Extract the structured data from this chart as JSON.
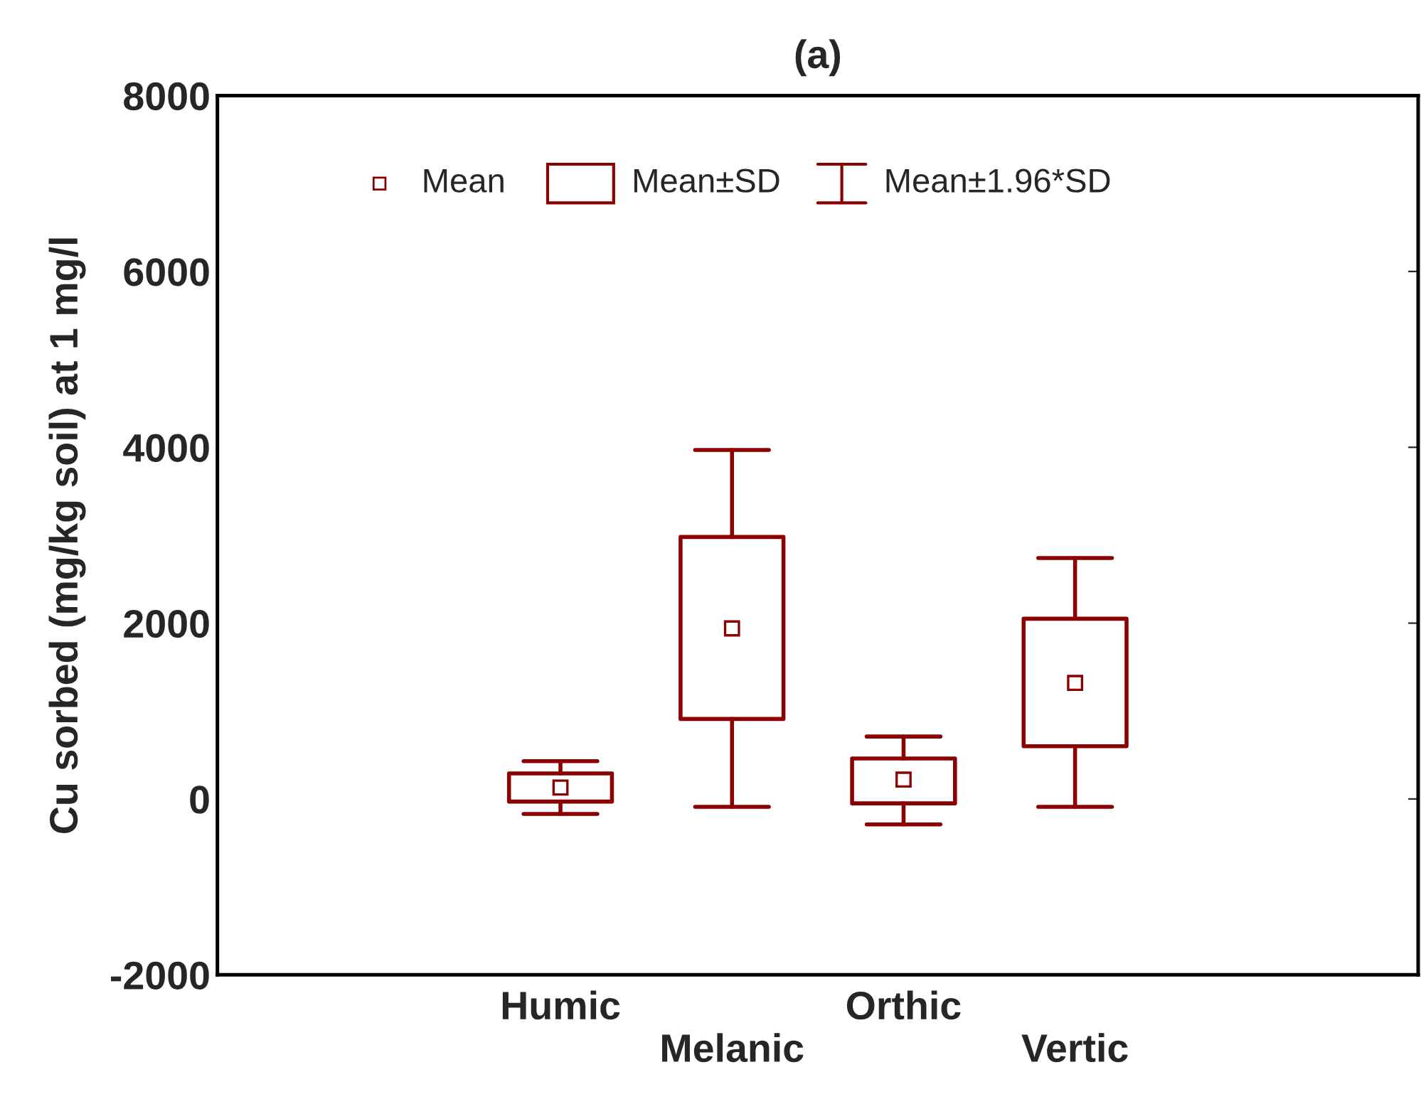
{
  "chart_data": {
    "type": "box",
    "title": "(a)",
    "ylabel": "Cu sorbed (mg/kg soil) at 1 mg/l",
    "categories": [
      "Humic",
      "Melanic",
      "Orthic",
      "Vertic"
    ],
    "color": "#8b0000",
    "boxes": [
      {
        "low": -170,
        "q1": -30,
        "median": 130,
        "q3": 290,
        "high": 430
      },
      {
        "low": -90,
        "q1": 910,
        "median": 1940,
        "q3": 2980,
        "high": 3970
      },
      {
        "low": -290,
        "q1": -50,
        "median": 220,
        "q3": 460,
        "high": 710
      },
      {
        "low": -90,
        "q1": 600,
        "median": 1320,
        "q3": 2050,
        "high": 2740
      }
    ],
    "annotations": [
      "Mean",
      "Mean±SD",
      "Mean±1.96*SD"
    ],
    "ylim": [
      -2000,
      8000
    ],
    "yticks": [
      -2000,
      0,
      2000,
      4000,
      6000,
      8000
    ],
    "grid": false
  }
}
